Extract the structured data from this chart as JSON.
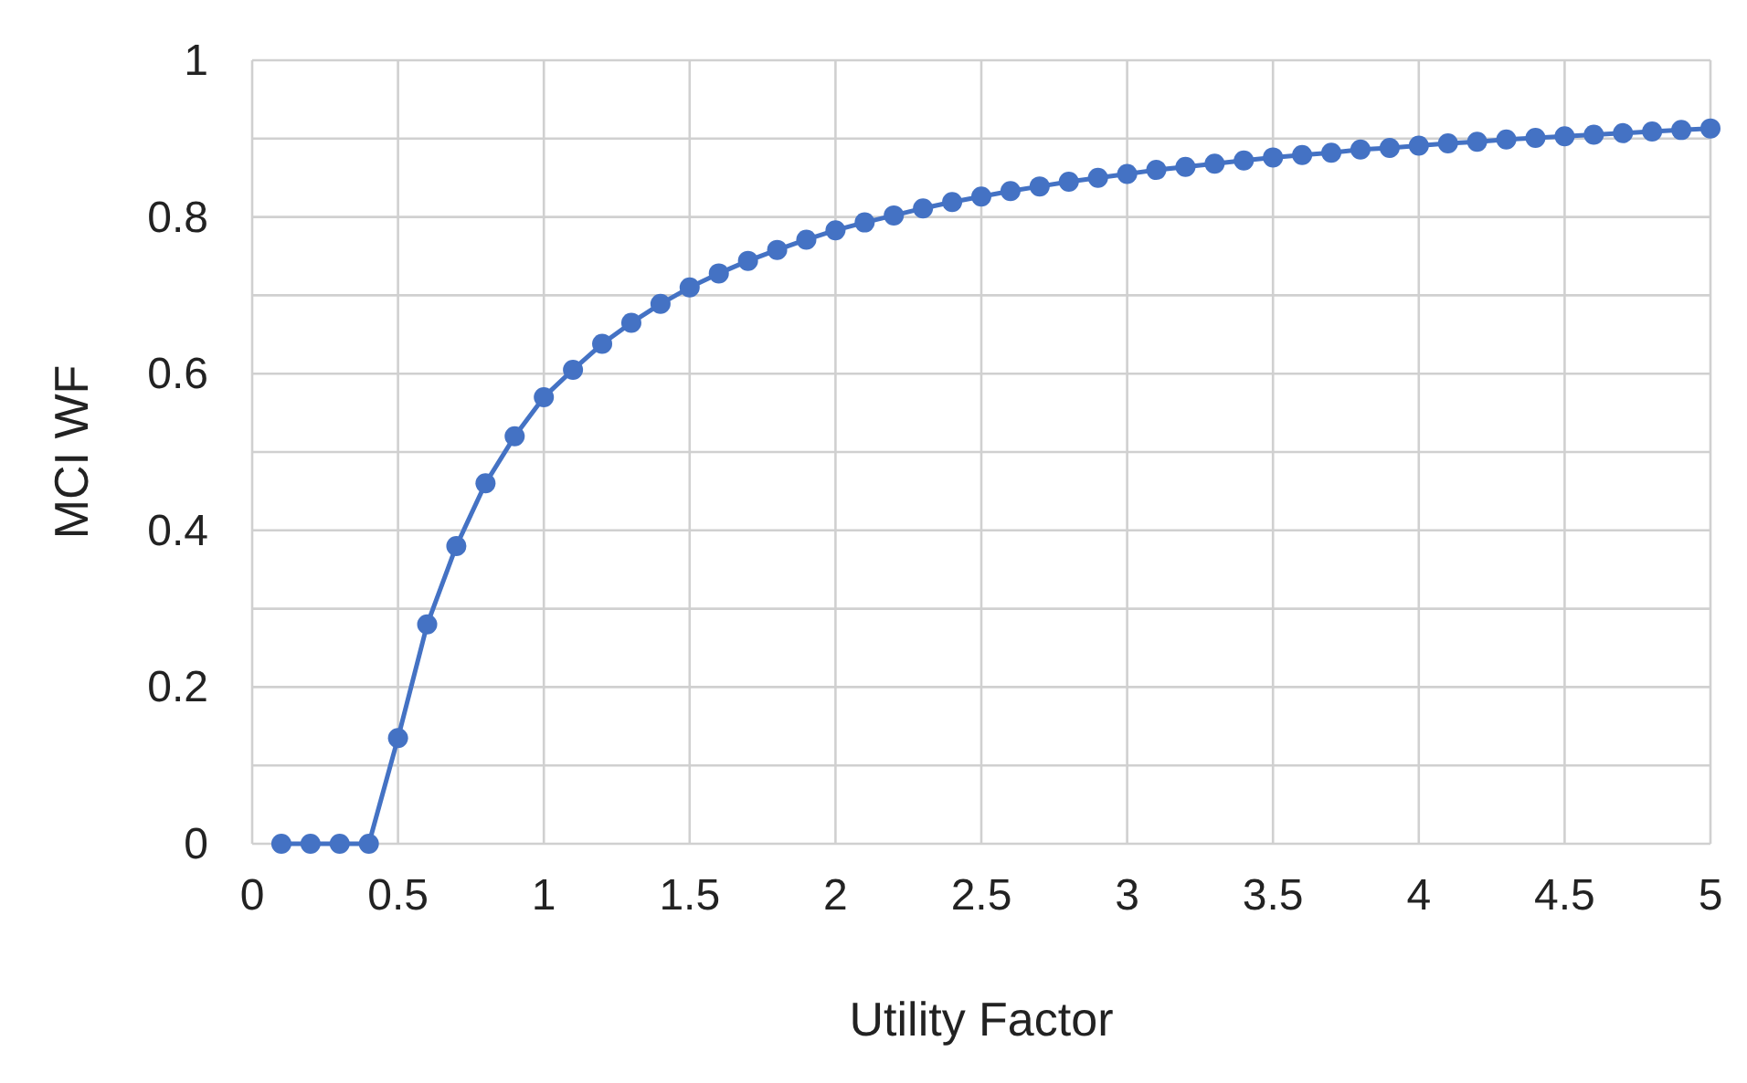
{
  "chart_data": {
    "type": "line",
    "xlabel": "Utility Factor",
    "ylabel": "MCI WF",
    "x": [
      0.1,
      0.2,
      0.3,
      0.4,
      0.5,
      0.6,
      0.7,
      0.8,
      0.9,
      1.0,
      1.1,
      1.2,
      1.3,
      1.4,
      1.5,
      1.6,
      1.7,
      1.8,
      1.9,
      2.0,
      2.1,
      2.2,
      2.3,
      2.4,
      2.5,
      2.6,
      2.7,
      2.8,
      2.9,
      3.0,
      3.1,
      3.2,
      3.3,
      3.4,
      3.5,
      3.6,
      3.7,
      3.8,
      3.9,
      4.0,
      4.1,
      4.2,
      4.3,
      4.4,
      4.5,
      4.6,
      4.7,
      4.8,
      4.9,
      5.0
    ],
    "series": [
      {
        "color": "#4472c4",
        "values": [
          0,
          0,
          0,
          0,
          0.135,
          0.28,
          0.38,
          0.46,
          0.52,
          0.57,
          0.605,
          0.638,
          0.665,
          0.689,
          0.71,
          0.728,
          0.744,
          0.758,
          0.771,
          0.783,
          0.793,
          0.802,
          0.811,
          0.819,
          0.826,
          0.833,
          0.839,
          0.845,
          0.85,
          0.855,
          0.86,
          0.864,
          0.868,
          0.872,
          0.876,
          0.879,
          0.882,
          0.886,
          0.888,
          0.891,
          0.894,
          0.896,
          0.899,
          0.901,
          0.903,
          0.905,
          0.907,
          0.909,
          0.911,
          0.913
        ]
      }
    ],
    "xlim": [
      0,
      5
    ],
    "xticks": [
      0,
      0.5,
      1,
      1.5,
      2,
      2.5,
      3,
      3.5,
      4,
      4.5,
      5
    ],
    "ylim": [
      0,
      1
    ],
    "yticks": [
      0,
      {
        "value": 0.1,
        "label": null
      },
      0.2,
      {
        "value": 0.3,
        "label": null
      },
      0.4,
      {
        "value": 0.5,
        "label": null
      },
      0.6,
      {
        "value": 0.7,
        "label": null
      },
      0.8,
      {
        "value": 0.9,
        "label": null
      },
      1
    ],
    "grid": true,
    "marker": "circle",
    "line_style": "solid"
  }
}
